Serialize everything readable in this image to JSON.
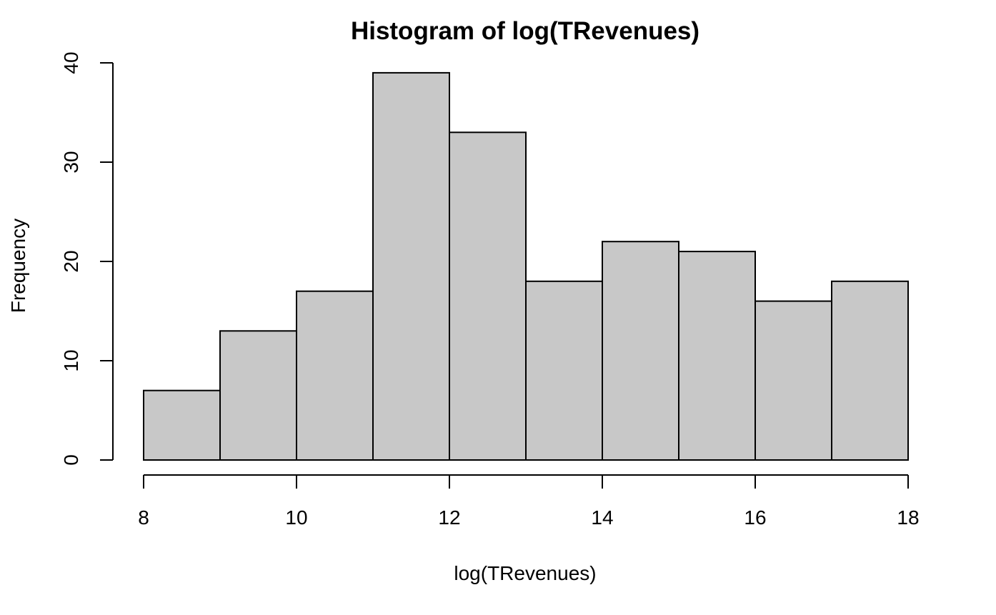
{
  "chart_data": {
    "type": "bar",
    "title": "Histogram of log(TRevenues)",
    "xlabel": "log(TRevenues)",
    "ylabel": "Frequency",
    "bin_edges": [
      8,
      9,
      10,
      11,
      12,
      13,
      14,
      15,
      16,
      17,
      18
    ],
    "values": [
      7,
      13,
      17,
      39,
      33,
      18,
      22,
      21,
      16,
      18
    ],
    "xlim": [
      8,
      18
    ],
    "ylim": [
      0,
      40
    ],
    "x_ticks": [
      8,
      10,
      12,
      14,
      16,
      18
    ],
    "y_ticks": [
      0,
      10,
      20,
      30,
      40
    ],
    "grid": false,
    "colors": {
      "bar_fill": "#c8c8c8",
      "bar_stroke": "#000000"
    }
  }
}
